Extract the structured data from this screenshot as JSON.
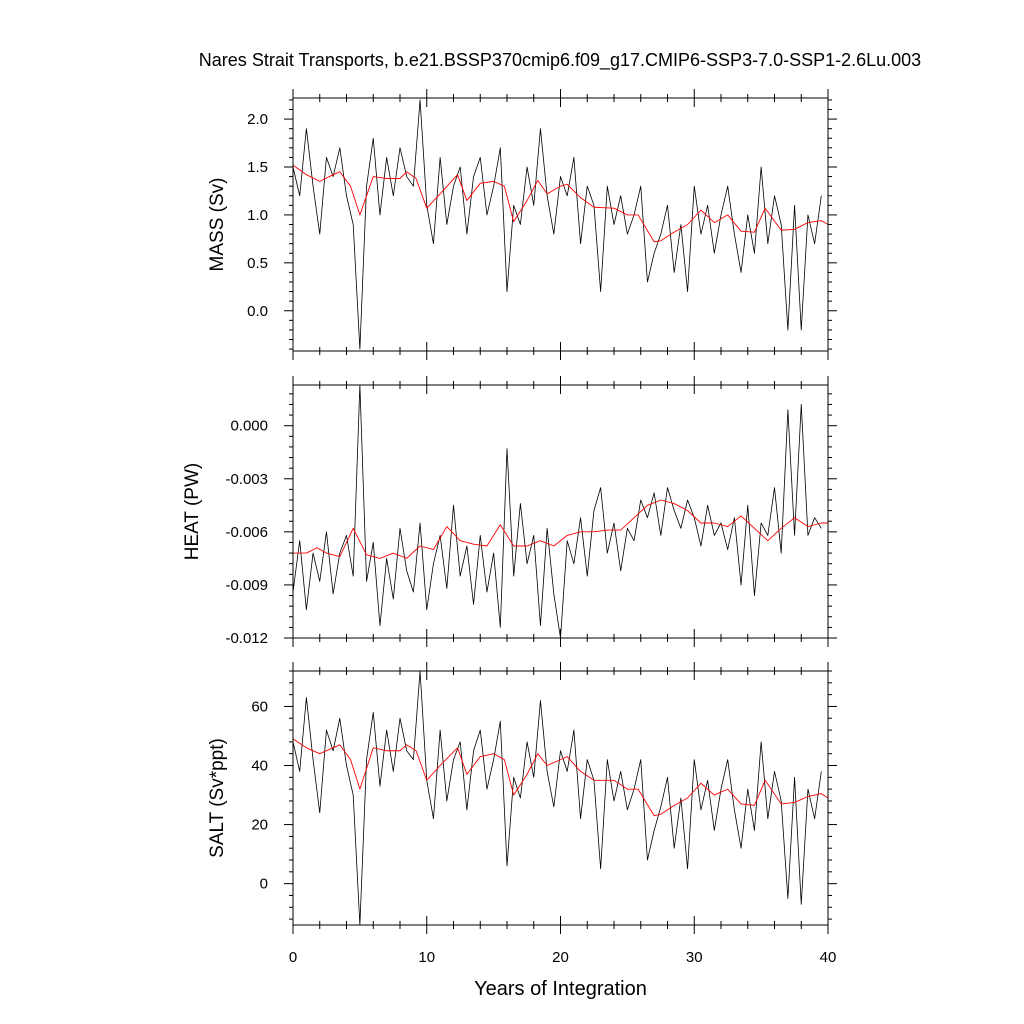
{
  "title": "Nares Strait Transports, b.e21.BSSP370cmip6.f09_g17.CMIP6-SSP3-7.0-SSP1-2.6Lu.003",
  "colors": {
    "raw": "#000000",
    "smooth": "#ff0000",
    "frame": "#000000"
  },
  "chart_data": [
    {
      "type": "line",
      "ylabel": "MASS (Sv)",
      "xlabel": "",
      "xlim": [
        0,
        40
      ],
      "ylim": [
        -0.42,
        2.22
      ],
      "yticks": [
        0.0,
        0.5,
        1.0,
        1.5,
        2.0
      ],
      "yticklabels": [
        "0.0",
        "0.5",
        "1.0",
        "1.5",
        "2.0"
      ],
      "xticks": [
        0,
        10,
        20,
        30,
        40
      ],
      "xticklabels": [],
      "series": [
        {
          "style": "raw",
          "x": [
            0,
            0.5,
            1,
            1.5,
            2,
            2.5,
            3,
            3.5,
            4,
            4.5,
            5,
            5.5,
            6,
            6.5,
            7,
            7.5,
            8,
            8.5,
            9,
            9.5,
            10,
            10.5,
            11,
            11.5,
            12,
            12.5,
            13,
            13.5,
            14,
            14.5,
            15,
            15.5,
            16,
            16.5,
            17,
            17.5,
            18,
            18.5,
            19,
            19.5,
            20,
            20.5,
            21,
            21.5,
            22,
            22.5,
            23,
            23.5,
            24,
            24.5,
            25,
            25.5,
            26,
            26.5,
            27,
            27.5,
            28,
            28.5,
            29,
            29.5,
            30,
            30.5,
            31,
            31.5,
            32,
            32.5,
            33,
            33.5,
            34,
            34.5,
            35,
            35.5,
            36,
            36.5,
            37,
            37.5,
            38,
            38.5,
            39,
            39.5
          ],
          "values": [
            1.5,
            1.2,
            1.9,
            1.3,
            0.8,
            1.6,
            1.4,
            1.7,
            1.2,
            0.9,
            -0.4,
            1.3,
            1.8,
            1.0,
            1.6,
            1.2,
            1.7,
            1.4,
            1.3,
            2.2,
            1.1,
            0.7,
            1.6,
            0.9,
            1.3,
            1.5,
            0.8,
            1.4,
            1.6,
            1.0,
            1.3,
            1.7,
            0.2,
            1.1,
            0.9,
            1.5,
            1.1,
            1.9,
            1.2,
            0.8,
            1.4,
            1.2,
            1.6,
            0.7,
            1.3,
            1.1,
            0.2,
            1.3,
            0.9,
            1.2,
            0.8,
            1.0,
            1.3,
            0.3,
            0.6,
            0.8,
            1.1,
            0.4,
            0.9,
            0.2,
            1.3,
            0.8,
            1.1,
            0.6,
            1.0,
            1.3,
            0.8,
            0.4,
            1.0,
            0.6,
            1.5,
            0.7,
            1.2,
            0.9,
            -0.2,
            1.1,
            -0.2,
            1.0,
            0.7,
            1.2
          ]
        },
        {
          "style": "smooth",
          "x": [
            0,
            1,
            2,
            3,
            3.5,
            4.3,
            5,
            6,
            7,
            8,
            8.5,
            9.2,
            10,
            11,
            12.3,
            13,
            14,
            15,
            15.8,
            16.5,
            17.5,
            18.3,
            19,
            20,
            20.5,
            21.5,
            22.5,
            24,
            25,
            25.8,
            27,
            27.5,
            28.5,
            29.5,
            30.5,
            31.5,
            32.5,
            33.5,
            34.5,
            35.3,
            36.5,
            37.5,
            38.5,
            39.5,
            40
          ],
          "values": [
            1.52,
            1.42,
            1.35,
            1.42,
            1.45,
            1.3,
            1.0,
            1.4,
            1.38,
            1.38,
            1.45,
            1.38,
            1.07,
            1.22,
            1.42,
            1.15,
            1.33,
            1.35,
            1.3,
            0.93,
            1.15,
            1.36,
            1.22,
            1.3,
            1.32,
            1.18,
            1.08,
            1.07,
            1.0,
            1.0,
            0.72,
            0.73,
            0.82,
            0.9,
            1.05,
            0.92,
            1.0,
            0.83,
            0.82,
            1.07,
            0.84,
            0.85,
            0.92,
            0.94,
            0.9
          ]
        }
      ]
    },
    {
      "type": "line",
      "ylabel": "HEAT (PW)",
      "xlabel": "",
      "xlim": [
        0,
        40
      ],
      "ylim": [
        -0.012,
        0.0023
      ],
      "yticks": [
        -0.012,
        -0.009,
        -0.006,
        -0.003,
        0.0
      ],
      "yticklabels": [
        "-0.012",
        "-0.009",
        "-0.006",
        "-0.003",
        "0.000"
      ],
      "xticks": [
        0,
        10,
        20,
        30,
        40
      ],
      "xticklabels": [],
      "series": [
        {
          "style": "raw",
          "x": [
            0,
            0.5,
            1,
            1.5,
            2,
            2.5,
            3,
            3.5,
            4,
            4.5,
            5,
            5.5,
            6,
            6.5,
            7,
            7.5,
            8,
            8.5,
            9,
            9.5,
            10,
            10.5,
            11,
            11.5,
            12,
            12.5,
            13,
            13.5,
            14,
            14.5,
            15,
            15.5,
            16,
            16.5,
            17,
            17.5,
            18,
            18.5,
            19,
            19.5,
            20,
            20.5,
            21,
            21.5,
            22,
            22.5,
            23,
            23.5,
            24,
            24.5,
            25,
            25.5,
            26,
            26.5,
            27,
            27.5,
            28,
            28.5,
            29,
            29.5,
            30,
            30.5,
            31,
            31.5,
            32,
            32.5,
            33,
            33.5,
            34,
            34.5,
            35,
            35.5,
            36,
            36.5,
            37,
            37.5,
            38,
            38.5,
            39,
            39.5
          ],
          "values": [
            -0.0094,
            -0.0065,
            -0.0104,
            -0.0072,
            -0.0088,
            -0.006,
            -0.0095,
            -0.0072,
            -0.0062,
            -0.0085,
            0.0023,
            -0.0088,
            -0.0066,
            -0.0113,
            -0.0075,
            -0.0098,
            -0.0058,
            -0.0082,
            -0.0094,
            -0.0055,
            -0.0104,
            -0.0078,
            -0.0062,
            -0.0092,
            -0.0045,
            -0.0085,
            -0.0068,
            -0.0101,
            -0.0062,
            -0.0094,
            -0.0072,
            -0.0114,
            -0.0013,
            -0.0085,
            -0.0044,
            -0.0078,
            -0.0062,
            -0.0113,
            -0.0058,
            -0.0095,
            -0.012,
            -0.0065,
            -0.0078,
            -0.0052,
            -0.0085,
            -0.0048,
            -0.0035,
            -0.0072,
            -0.0055,
            -0.0082,
            -0.0058,
            -0.0065,
            -0.0042,
            -0.0052,
            -0.0038,
            -0.0062,
            -0.0035,
            -0.0048,
            -0.0058,
            -0.0042,
            -0.0052,
            -0.0068,
            -0.0045,
            -0.0062,
            -0.0055,
            -0.007,
            -0.0052,
            -0.009,
            -0.0045,
            -0.0096,
            -0.0055,
            -0.0062,
            -0.0035,
            -0.0072,
            0.0009,
            -0.0062,
            0.0012,
            -0.0062,
            -0.0052,
            -0.0058
          ]
        },
        {
          "style": "smooth",
          "x": [
            0,
            1,
            1.8,
            2.5,
            3.5,
            4.5,
            5.5,
            6.5,
            7.5,
            8.5,
            9.5,
            10.5,
            11.5,
            12.5,
            13.5,
            14.5,
            15.5,
            16.5,
            17.5,
            18.5,
            19.5,
            20.5,
            21.5,
            22.5,
            23.5,
            24.5,
            25.5,
            26.5,
            27.5,
            28.5,
            29.5,
            30.5,
            31.5,
            32.5,
            33.5,
            34.5,
            35.5,
            36.5,
            37.5,
            38.5,
            39.5,
            40
          ],
          "values": [
            -0.0072,
            -0.0072,
            -0.0069,
            -0.0072,
            -0.0074,
            -0.0058,
            -0.0073,
            -0.0075,
            -0.0072,
            -0.0075,
            -0.0068,
            -0.007,
            -0.0057,
            -0.0065,
            -0.0067,
            -0.0068,
            -0.0056,
            -0.0068,
            -0.0068,
            -0.0065,
            -0.0068,
            -0.0062,
            -0.006,
            -0.006,
            -0.0059,
            -0.0059,
            -0.0052,
            -0.0045,
            -0.0042,
            -0.0044,
            -0.0048,
            -0.0055,
            -0.0055,
            -0.0057,
            -0.0051,
            -0.0058,
            -0.0065,
            -0.0058,
            -0.0052,
            -0.0057,
            -0.0055,
            -0.0055
          ]
        }
      ]
    },
    {
      "type": "line",
      "ylabel": "SALT (Sv*ppt)",
      "xlabel": "Years of Integration",
      "xlim": [
        0,
        40
      ],
      "ylim": [
        -14,
        72
      ],
      "yticks": [
        0,
        20,
        40,
        60
      ],
      "yticklabels": [
        "0",
        "20",
        "40",
        "60"
      ],
      "xticks": [
        0,
        10,
        20,
        30,
        40
      ],
      "xticklabels": [
        "0",
        "10",
        "20",
        "30",
        "40"
      ],
      "series": [
        {
          "style": "raw",
          "x": [
            0,
            0.5,
            1,
            1.5,
            2,
            2.5,
            3,
            3.5,
            4,
            4.5,
            5,
            5.5,
            6,
            6.5,
            7,
            7.5,
            8,
            8.5,
            9,
            9.5,
            10,
            10.5,
            11,
            11.5,
            12,
            12.5,
            13,
            13.5,
            14,
            14.5,
            15,
            15.5,
            16,
            16.5,
            17,
            17.5,
            18,
            18.5,
            19,
            19.5,
            20,
            20.5,
            21,
            21.5,
            22,
            22.5,
            23,
            23.5,
            24,
            24.5,
            25,
            25.5,
            26,
            26.5,
            27,
            27.5,
            28,
            28.5,
            29,
            29.5,
            30,
            30.5,
            31,
            31.5,
            32,
            32.5,
            33,
            33.5,
            34,
            34.5,
            35,
            35.5,
            36,
            36.5,
            37,
            37.5,
            38,
            38.5,
            39,
            39.5
          ],
          "values": [
            48,
            38,
            63,
            42,
            24,
            52,
            45,
            56,
            40,
            30,
            -14,
            42,
            58,
            33,
            52,
            38,
            56,
            45,
            42,
            72,
            35,
            22,
            52,
            28,
            42,
            48,
            25,
            45,
            52,
            32,
            42,
            55,
            6,
            36,
            29,
            48,
            36,
            62,
            38,
            26,
            45,
            38,
            52,
            22,
            42,
            35,
            5,
            42,
            28,
            38,
            25,
            32,
            42,
            8,
            18,
            26,
            36,
            12,
            29,
            5,
            42,
            25,
            35,
            18,
            32,
            42,
            25,
            12,
            32,
            18,
            48,
            22,
            38,
            28,
            -5,
            36,
            -7,
            32,
            22,
            38
          ]
        },
        {
          "style": "smooth",
          "x": [
            0,
            1,
            2,
            3,
            3.5,
            4.3,
            5,
            6,
            7,
            8,
            8.5,
            9.2,
            10,
            11,
            12.3,
            13,
            14,
            15,
            15.8,
            16.5,
            17.5,
            18.3,
            19,
            20,
            20.5,
            21.5,
            22.5,
            24,
            25,
            25.8,
            27,
            27.5,
            28.5,
            29.5,
            30.5,
            31.5,
            32.5,
            33.5,
            34.5,
            35.3,
            36.5,
            37.5,
            38.5,
            39.5,
            40
          ],
          "values": [
            49,
            46,
            44,
            46,
            47,
            42,
            32,
            46,
            45,
            45,
            47,
            45,
            35,
            40,
            46,
            37,
            43,
            44,
            42,
            30,
            37,
            44,
            40,
            42,
            43,
            38,
            35,
            35,
            32,
            32,
            23,
            23.5,
            26.5,
            29,
            34,
            30,
            32,
            27,
            26.5,
            35,
            27,
            27.5,
            29.5,
            30.5,
            29
          ]
        }
      ]
    }
  ]
}
